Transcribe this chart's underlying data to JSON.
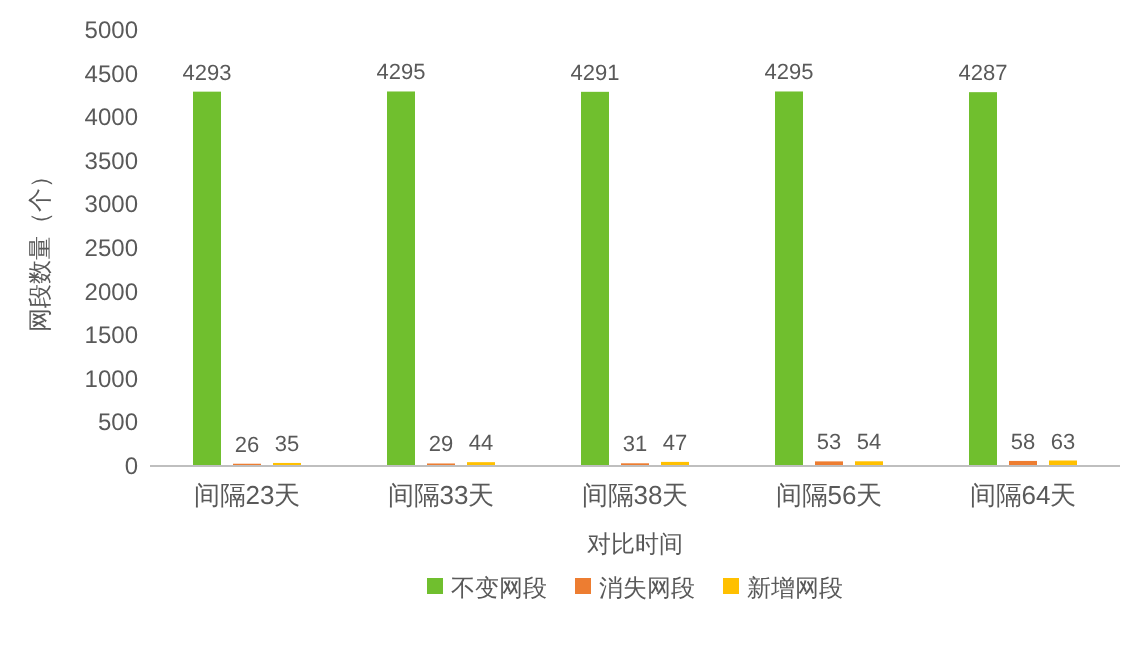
{
  "chart_data": {
    "type": "bar",
    "categories": [
      "间隔23天",
      "间隔33天",
      "间隔38天",
      "间隔56天",
      "间隔64天"
    ],
    "series": [
      {
        "name": "不变网段",
        "color": "#70bf2e",
        "values": [
          4293,
          4295,
          4291,
          4295,
          4287
        ]
      },
      {
        "name": "消失网段",
        "color": "#ed7d31",
        "values": [
          26,
          29,
          31,
          53,
          58
        ]
      },
      {
        "name": "新增网段",
        "color": "#ffc000",
        "values": [
          35,
          44,
          47,
          54,
          63
        ]
      }
    ],
    "ylim": [
      0,
      5000
    ],
    "yticks": [
      0,
      500,
      1000,
      1500,
      2000,
      2500,
      3000,
      3500,
      4000,
      4500,
      5000
    ],
    "xlabel": "对比时间",
    "ylabel": "网段数量（个）",
    "legend": "bottom",
    "data_labels": true
  }
}
